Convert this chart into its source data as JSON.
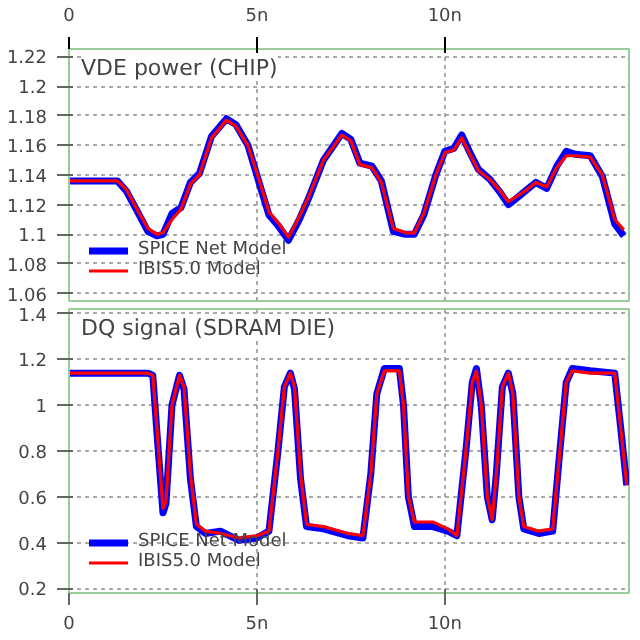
{
  "chart_data": [
    {
      "type": "line",
      "title": "VDE power (CHIP)",
      "legend": "bottom left",
      "grid": true,
      "x": [
        0,
        1.29,
        1.53,
        1.85,
        2.1,
        2.34,
        2.5,
        2.74,
        2.98,
        3.23,
        3.47,
        3.79,
        4.19,
        4.44,
        4.76,
        5.08,
        5.32,
        5.56,
        5.84,
        6.13,
        6.37,
        6.77,
        7.26,
        7.5,
        7.74,
        8.06,
        8.31,
        8.63,
        8.95,
        9.19,
        9.44,
        9.76,
        10.0,
        10.24,
        10.45,
        10.65,
        10.89,
        11.2,
        11.45,
        11.69,
        11.94,
        12.18,
        12.42,
        12.71,
        12.98,
        13.23,
        13.47,
        13.87,
        14.19,
        14.52,
        14.76
      ],
      "series": [
        {
          "name": "SPICE Net Model",
          "color": "#0000ff",
          "values": [
            1.136,
            1.136,
            1.129,
            1.114,
            1.102,
            1.099,
            1.1,
            1.114,
            1.118,
            1.135,
            1.141,
            1.166,
            1.178,
            1.174,
            1.16,
            1.133,
            1.113,
            1.106,
            1.096,
            1.11,
            1.124,
            1.15,
            1.168,
            1.164,
            1.148,
            1.146,
            1.136,
            1.102,
            1.1,
            1.1,
            1.113,
            1.14,
            1.156,
            1.158,
            1.167,
            1.156,
            1.144,
            1.137,
            1.129,
            1.12,
            1.125,
            1.13,
            1.135,
            1.131,
            1.146,
            1.156,
            1.154,
            1.153,
            1.139,
            1.107,
            1.099
          ]
        },
        {
          "name": "IBIS5.0 Model",
          "color": "#ff0000",
          "values": [
            1.136,
            1.136,
            1.13,
            1.115,
            1.104,
            1.1,
            1.101,
            1.11,
            1.117,
            1.134,
            1.14,
            1.165,
            1.177,
            1.173,
            1.16,
            1.135,
            1.115,
            1.108,
            1.098,
            1.112,
            1.125,
            1.15,
            1.167,
            1.163,
            1.147,
            1.145,
            1.135,
            1.104,
            1.101,
            1.101,
            1.114,
            1.14,
            1.155,
            1.157,
            1.165,
            1.155,
            1.143,
            1.137,
            1.13,
            1.122,
            1.126,
            1.13,
            1.135,
            1.132,
            1.145,
            1.153,
            1.153,
            1.152,
            1.14,
            1.11,
            1.103
          ]
        }
      ],
      "ylim": [
        1.055,
        1.225
      ],
      "yticks": [
        {
          "value": 1.06,
          "label": "1.06"
        },
        {
          "value": 1.08,
          "label": "1.08"
        },
        {
          "value": 1.1,
          "label": "1.1"
        },
        {
          "value": 1.12,
          "label": "1.12"
        },
        {
          "value": 1.14,
          "label": "1.14"
        },
        {
          "value": 1.16,
          "label": "1.16"
        },
        {
          "value": 1.18,
          "label": "1.18"
        },
        {
          "value": 1.2,
          "label": "1.2"
        },
        {
          "value": 1.22,
          "label": "1.22"
        }
      ],
      "xlim": [
        0,
        14.9
      ],
      "x2lim": [
        0,
        14.9
      ],
      "x2ticks": [
        0,
        {
          "value": 5,
          "label": "5n"
        },
        {
          "value": 10,
          "label": "10n"
        }
      ]
    },
    {
      "type": "line",
      "title": "DQ signal (SDRAM DIE)",
      "legend": "bottom left",
      "grid": true,
      "x": [
        0,
        2.1,
        2.23,
        2.34,
        2.5,
        2.58,
        2.74,
        2.94,
        3.06,
        3.23,
        3.39,
        3.63,
        4.03,
        4.52,
        5.0,
        5.32,
        5.56,
        5.73,
        5.89,
        6.0,
        6.16,
        6.32,
        6.77,
        7.42,
        7.82,
        8.03,
        8.19,
        8.39,
        8.79,
        8.9,
        9.03,
        9.19,
        9.68,
        10.08,
        10.32,
        10.56,
        10.73,
        10.84,
        10.97,
        11.13,
        11.26,
        11.37,
        11.53,
        11.69,
        11.81,
        11.97,
        12.1,
        12.5,
        12.87,
        13.06,
        13.23,
        13.39,
        13.87,
        14.52,
        14.68,
        14.84
      ],
      "series": [
        {
          "name": "SPICE Net Model",
          "color": "#0000ff",
          "values": [
            1.14,
            1.14,
            1.13,
            0.88,
            0.53,
            0.57,
            1.0,
            1.13,
            1.07,
            0.68,
            0.47,
            0.44,
            0.45,
            0.41,
            0.42,
            0.45,
            0.8,
            1.08,
            1.14,
            1.07,
            0.68,
            0.47,
            0.46,
            0.43,
            0.42,
            0.7,
            1.05,
            1.16,
            1.16,
            1.0,
            0.6,
            0.47,
            0.47,
            0.45,
            0.43,
            0.8,
            1.1,
            1.16,
            1.0,
            0.6,
            0.5,
            0.7,
            1.08,
            1.14,
            1.05,
            0.6,
            0.46,
            0.44,
            0.45,
            0.8,
            1.1,
            1.16,
            1.15,
            1.14,
            0.9,
            0.65
          ]
        },
        {
          "name": "IBIS5.0 Model",
          "color": "#ff0000",
          "values": [
            1.14,
            1.14,
            1.13,
            0.9,
            0.55,
            0.58,
            1.0,
            1.13,
            1.08,
            0.7,
            0.48,
            0.45,
            0.44,
            0.42,
            0.43,
            0.45,
            0.8,
            1.08,
            1.14,
            1.08,
            0.7,
            0.48,
            0.47,
            0.44,
            0.43,
            0.7,
            1.05,
            1.15,
            1.15,
            1.0,
            0.6,
            0.49,
            0.49,
            0.46,
            0.43,
            0.8,
            1.1,
            1.15,
            1.0,
            0.6,
            0.5,
            0.7,
            1.08,
            1.14,
            1.05,
            0.6,
            0.47,
            0.45,
            0.46,
            0.8,
            1.1,
            1.15,
            1.14,
            1.14,
            0.9,
            0.65
          ]
        }
      ],
      "ylim": [
        0.18,
        1.42
      ],
      "yticks": [
        {
          "value": 0.2,
          "label": "0.2"
        },
        {
          "value": 0.4,
          "label": "0.4"
        },
        {
          "value": 0.6,
          "label": "0.6"
        },
        {
          "value": 0.8,
          "label": "0.8"
        },
        {
          "value": 1,
          "label": "1"
        },
        {
          "value": 1.2,
          "label": "1.2"
        },
        {
          "value": 1.4,
          "label": "1.4"
        }
      ],
      "xlim": [
        0,
        14.9
      ],
      "xticks": [
        0,
        {
          "value": 5,
          "label": "5n"
        },
        {
          "value": 10,
          "label": "10n"
        }
      ]
    }
  ]
}
